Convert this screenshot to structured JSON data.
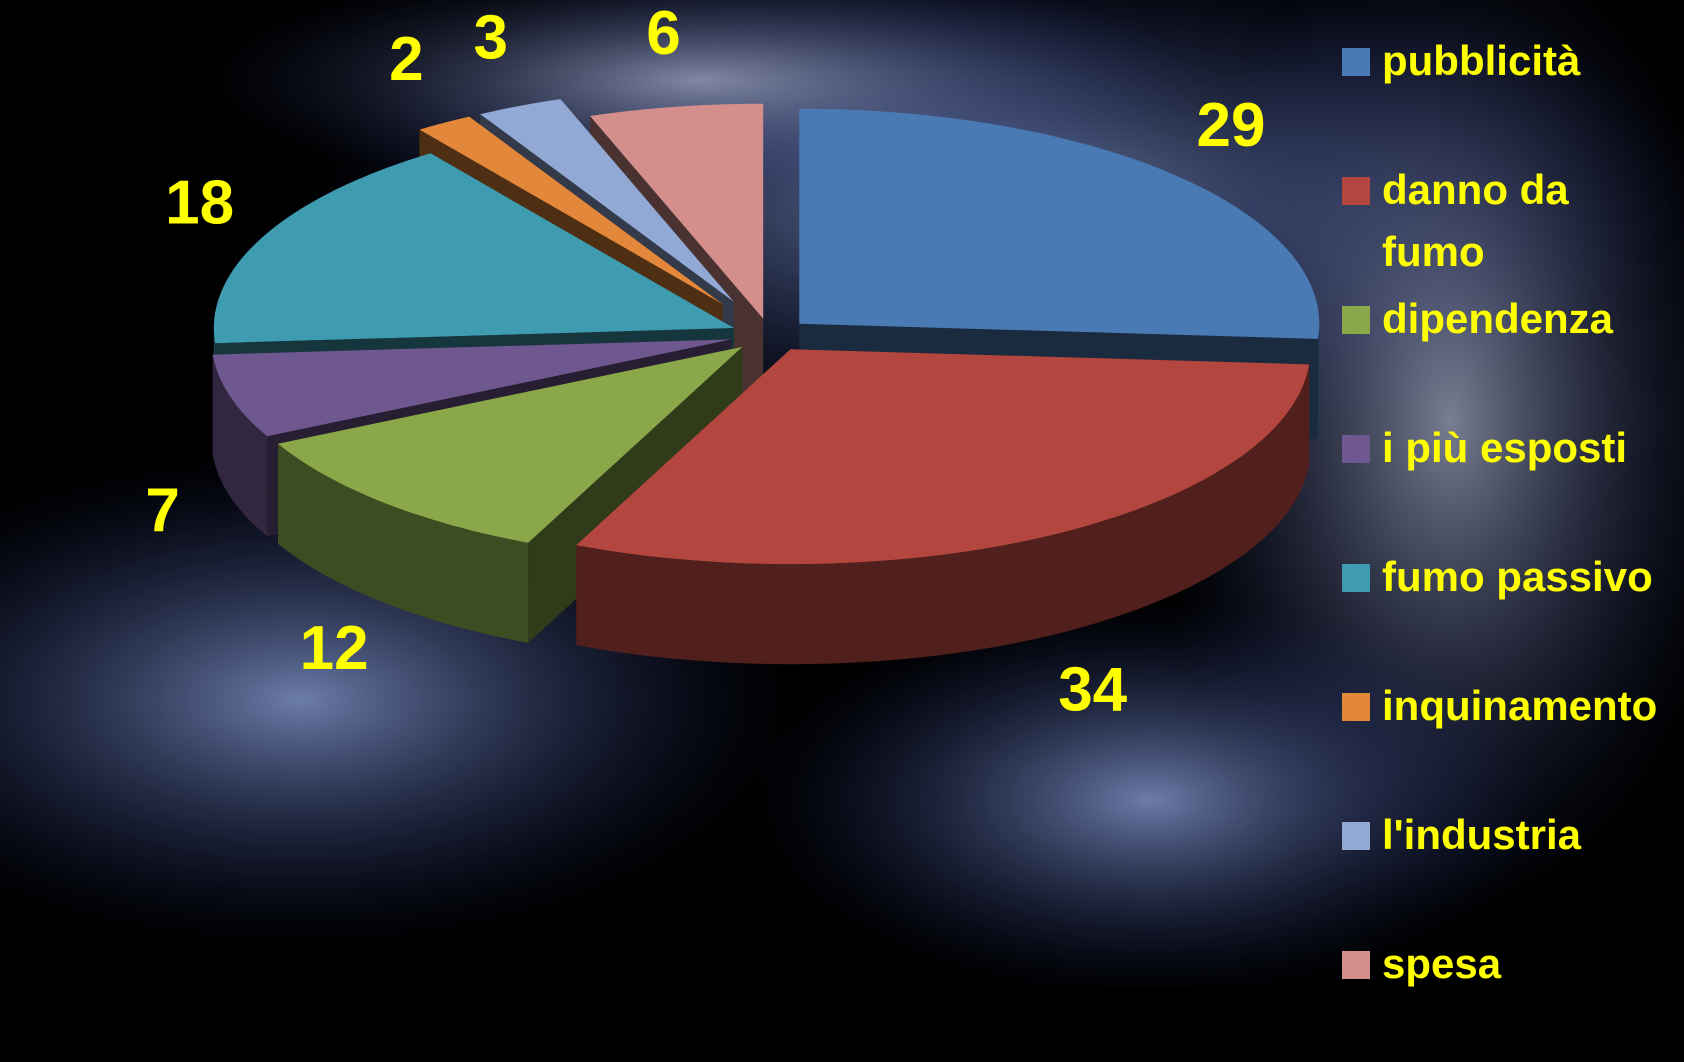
{
  "chart_data": {
    "type": "pie",
    "categories": [
      "pubblicità",
      "danno da fumo",
      "dipendenza",
      "i più esposti",
      "fumo passivo",
      "inquinamento",
      "l'industria",
      "spesa"
    ],
    "values": [
      29,
      34,
      12,
      7,
      18,
      2,
      3,
      6
    ],
    "colors": [
      "#4a7ab4",
      "#b3473f",
      "#8aa84a",
      "#6f578f",
      "#3e9bb0",
      "#e3873a",
      "#91a9d4",
      "#d48f8c"
    ],
    "legend": "right"
  }
}
